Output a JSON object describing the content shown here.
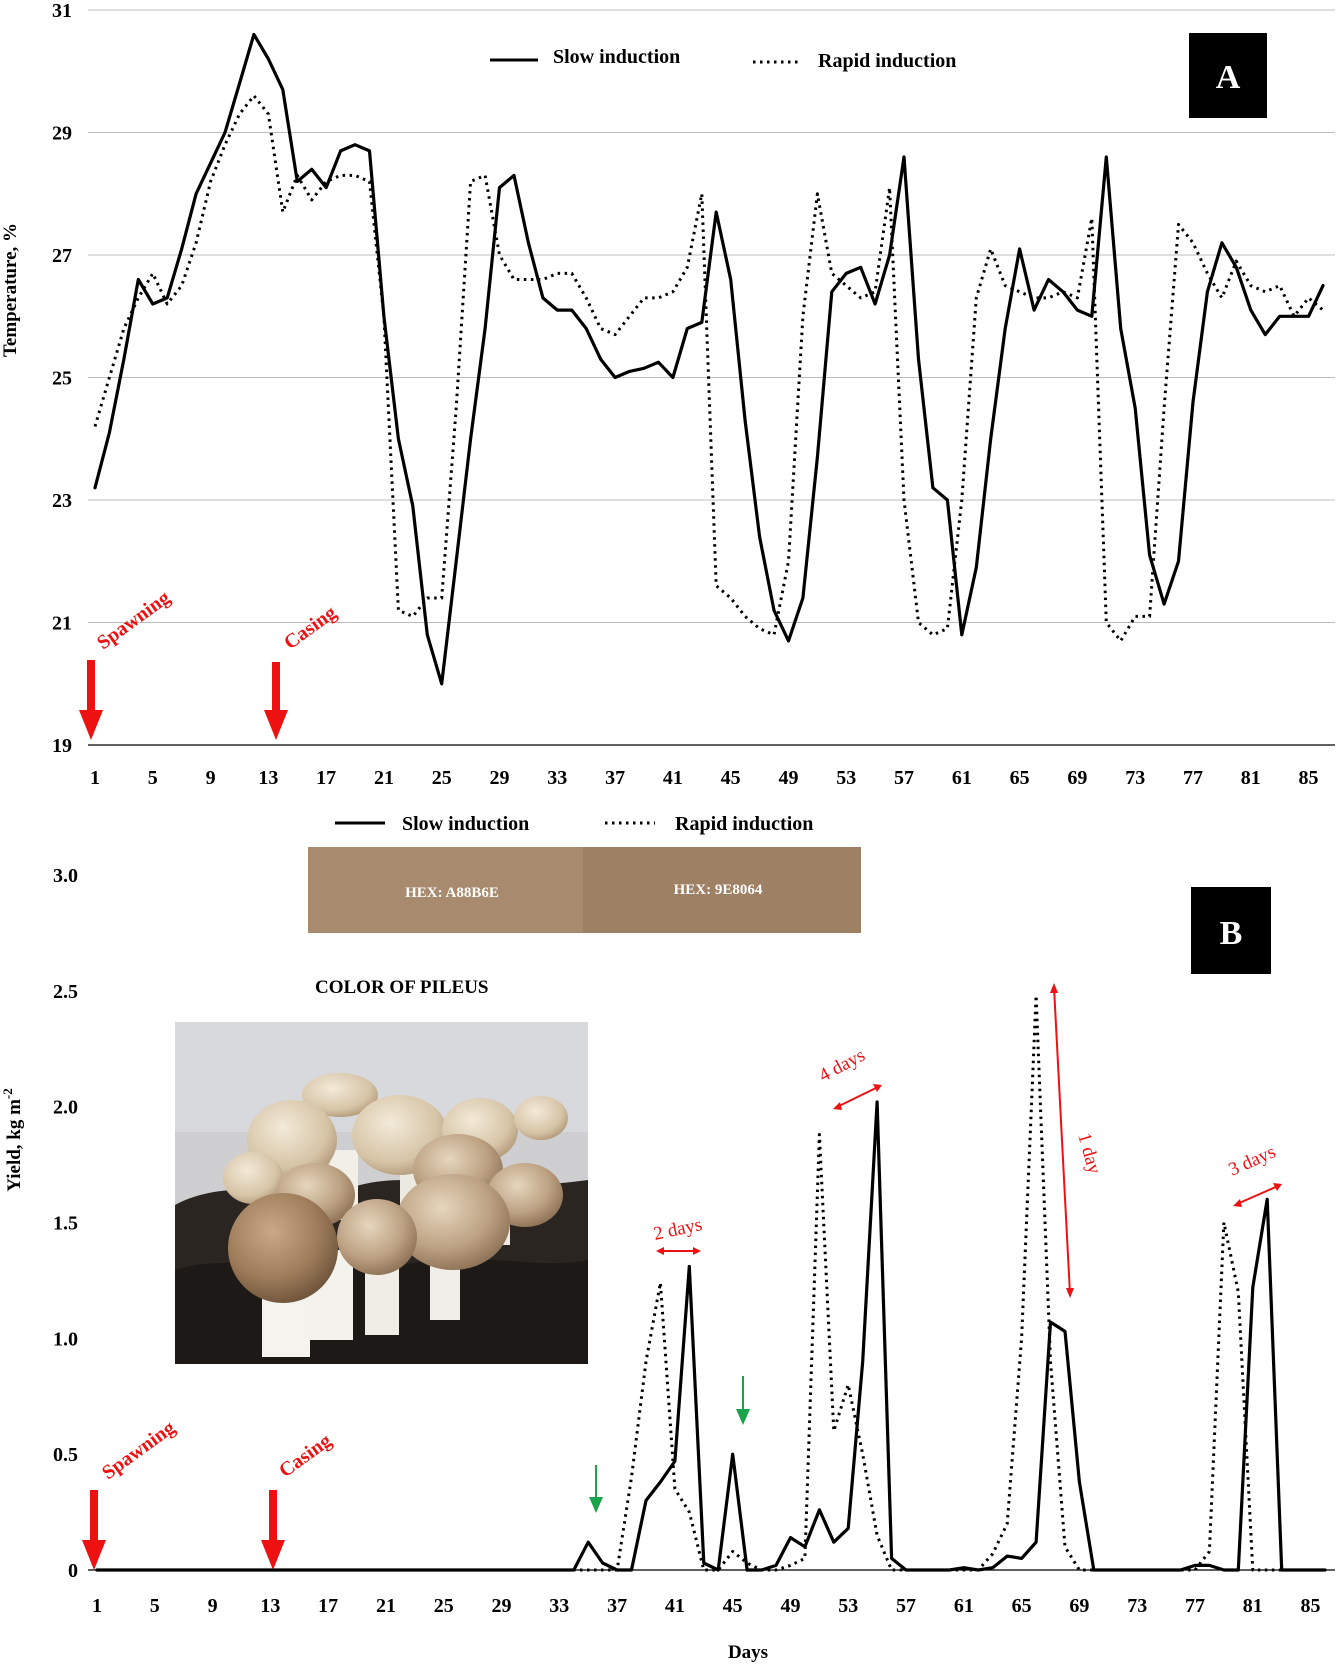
{
  "colors": {
    "red_marker": "#ee1111",
    "green_marker": "#1aa34a",
    "swatch_left": "#A88B6E",
    "swatch_right": "#9E8064",
    "panel_letter_bg": "#000000"
  },
  "chart_data": [
    {
      "panel": "A",
      "type": "line",
      "ylabel": "Temperature,  %",
      "xlabel": "",
      "ylim": [
        19,
        31
      ],
      "xlim": [
        1,
        86
      ],
      "yticks": [
        19,
        21,
        23,
        25,
        27,
        29,
        31
      ],
      "xticks": [
        1,
        5,
        9,
        13,
        17,
        21,
        25,
        29,
        33,
        37,
        41,
        45,
        49,
        53,
        57,
        61,
        65,
        69,
        73,
        77,
        81,
        85
      ],
      "grid": "horizontal",
      "legend_position": "top-center",
      "series": [
        {
          "name": "Slow  induction",
          "style": "solid",
          "x": [
            1,
            2,
            3,
            4,
            5,
            6,
            7,
            8,
            9,
            10,
            11,
            12,
            13,
            14,
            15,
            16,
            17,
            18,
            19,
            20,
            21,
            22,
            23,
            24,
            25,
            26,
            27,
            28,
            29,
            30,
            31,
            32,
            33,
            34,
            35,
            36,
            37,
            38,
            39,
            40,
            41,
            42,
            43,
            44,
            45,
            46,
            47,
            48,
            49,
            50,
            51,
            52,
            53,
            54,
            55,
            56,
            57,
            58,
            59,
            60,
            61,
            62,
            63,
            64,
            65,
            66,
            67,
            68,
            69,
            70,
            71,
            72,
            73,
            74,
            75,
            76,
            77,
            78,
            79,
            80,
            81,
            82,
            83,
            84,
            85,
            86
          ],
          "y": [
            23.2,
            24.1,
            25.3,
            26.6,
            26.2,
            26.3,
            27.1,
            28.0,
            28.5,
            29.0,
            29.8,
            30.6,
            30.2,
            29.7,
            28.2,
            28.4,
            28.1,
            28.7,
            28.8,
            28.7,
            26.0,
            24.0,
            22.9,
            20.8,
            20.0,
            22.0,
            24.0,
            25.8,
            28.1,
            28.3,
            27.2,
            26.3,
            26.1,
            26.1,
            25.8,
            25.3,
            25.0,
            25.1,
            25.15,
            25.25,
            25.0,
            25.8,
            25.9,
            27.7,
            26.6,
            24.3,
            22.4,
            21.2,
            20.7,
            21.4,
            23.7,
            26.4,
            26.7,
            26.8,
            26.2,
            27.0,
            28.6,
            25.3,
            23.2,
            23.0,
            20.8,
            21.9,
            24.0,
            25.8,
            27.1,
            26.1,
            26.6,
            26.4,
            26.1,
            26.0,
            28.6,
            25.8,
            24.5,
            22.1,
            21.3,
            22.0,
            24.6,
            26.4,
            27.2,
            26.8,
            26.1,
            25.7,
            26.0,
            26.0,
            26.0,
            26.5
          ]
        },
        {
          "name": "Rapid  induction",
          "style": "dotted",
          "x": [
            1,
            2,
            3,
            4,
            5,
            6,
            7,
            8,
            9,
            10,
            11,
            12,
            13,
            14,
            15,
            16,
            17,
            18,
            19,
            20,
            21,
            22,
            23,
            24,
            25,
            26,
            27,
            28,
            29,
            30,
            31,
            32,
            33,
            34,
            35,
            36,
            37,
            38,
            39,
            40,
            41,
            42,
            43,
            44,
            45,
            46,
            47,
            48,
            49,
            50,
            51,
            52,
            53,
            54,
            55,
            56,
            57,
            58,
            59,
            60,
            61,
            62,
            63,
            64,
            65,
            66,
            67,
            68,
            69,
            70,
            71,
            72,
            73,
            74,
            75,
            76,
            77,
            78,
            79,
            80,
            81,
            82,
            83,
            84,
            85,
            86
          ],
          "y": [
            24.2,
            25.0,
            25.8,
            26.3,
            26.7,
            26.2,
            26.5,
            27.2,
            28.2,
            28.8,
            29.3,
            29.6,
            29.3,
            27.7,
            28.3,
            27.9,
            28.2,
            28.3,
            28.3,
            28.2,
            26.0,
            21.2,
            21.1,
            21.4,
            21.4,
            24.5,
            28.2,
            28.3,
            27.0,
            26.6,
            26.6,
            26.6,
            26.7,
            26.7,
            26.3,
            25.8,
            25.7,
            26.0,
            26.3,
            26.3,
            26.4,
            26.8,
            28.0,
            21.6,
            21.4,
            21.1,
            20.9,
            20.8,
            22.0,
            26.0,
            28.0,
            26.7,
            26.5,
            26.3,
            26.4,
            28.1,
            23.0,
            21.0,
            20.8,
            20.9,
            23.0,
            26.3,
            27.1,
            26.5,
            26.4,
            26.3,
            26.3,
            26.4,
            26.3,
            27.6,
            21.0,
            20.7,
            21.1,
            21.1,
            24.5,
            27.5,
            27.2,
            26.7,
            26.3,
            26.9,
            26.5,
            26.4,
            26.5,
            26.0,
            26.3,
            26.1
          ]
        }
      ],
      "annotations": {
        "spawning_label": "Spawning",
        "casing_label": "Casing",
        "panel_letter": "A"
      }
    },
    {
      "panel": "B",
      "type": "line",
      "ylabel": "Yield,  kg m",
      "ylabel_superscript": "-2",
      "xlabel": "Days",
      "ylim": [
        0,
        3
      ],
      "xlim": [
        1,
        86
      ],
      "yticks": [
        "0",
        "0.5",
        "1.0",
        "1.5",
        "2.0",
        "2.5",
        "3.0"
      ],
      "xticks": [
        1,
        5,
        9,
        13,
        17,
        21,
        25,
        29,
        33,
        37,
        41,
        45,
        49,
        53,
        57,
        61,
        65,
        69,
        73,
        77,
        81,
        85
      ],
      "grid": "none",
      "legend_position": "top-center",
      "series": [
        {
          "name": "Slow  induction",
          "style": "solid",
          "x": [
            1,
            34,
            35,
            36,
            37,
            38,
            39,
            40,
            41,
            42,
            43,
            44,
            45,
            46,
            47,
            48,
            49,
            50,
            51,
            52,
            53,
            54,
            55,
            56,
            57,
            60,
            61,
            62,
            63,
            64,
            65,
            66,
            67,
            68,
            69,
            70,
            76,
            77,
            78,
            79,
            80,
            81,
            82,
            83,
            84,
            86
          ],
          "y": [
            0,
            0,
            0.12,
            0.03,
            0,
            0,
            0.3,
            0.38,
            0.47,
            1.31,
            0.03,
            0,
            0.5,
            0,
            0,
            0.02,
            0.14,
            0.1,
            0.26,
            0.12,
            0.18,
            0.9,
            2.02,
            0.05,
            0,
            0,
            0.01,
            0,
            0.01,
            0.06,
            0.05,
            0.12,
            1.07,
            1.03,
            0.38,
            0,
            0,
            0.02,
            0.02,
            0,
            0,
            1.22,
            1.6,
            0,
            0,
            0
          ]
        },
        {
          "name": "Rapid  induction",
          "style": "dotted",
          "x": [
            1,
            37,
            38,
            39,
            40,
            41,
            42,
            43,
            44,
            45,
            46,
            47,
            48,
            49,
            50,
            51,
            52,
            53,
            54,
            55,
            56,
            57,
            62,
            63,
            64,
            65,
            66,
            67,
            68,
            69,
            77,
            78,
            79,
            80,
            81,
            82,
            86
          ],
          "y": [
            0,
            0,
            0.4,
            0.9,
            1.24,
            0.35,
            0.25,
            0,
            0,
            0.08,
            0.03,
            0,
            0,
            0.02,
            0.05,
            1.88,
            0.6,
            0.8,
            0.5,
            0.15,
            0,
            0,
            0,
            0.07,
            0.2,
            1.0,
            2.48,
            0.9,
            0.1,
            0,
            0,
            0.08,
            1.5,
            1.2,
            0,
            0,
            0
          ]
        }
      ],
      "annotations": {
        "spawning_label": "Spawning",
        "casing_label": "Casing",
        "panel_letter": "B",
        "peak_gaps": [
          "2 days",
          "4 days",
          "1 day",
          "3 days"
        ],
        "green_arrow_days": [
          35,
          45
        ]
      },
      "inset": {
        "title": "COLOR  OF PILEUS",
        "swatches": [
          "HEX:  A88B6E",
          "HEX:  9E8064"
        ],
        "photo": "mushroom-photo"
      }
    }
  ]
}
